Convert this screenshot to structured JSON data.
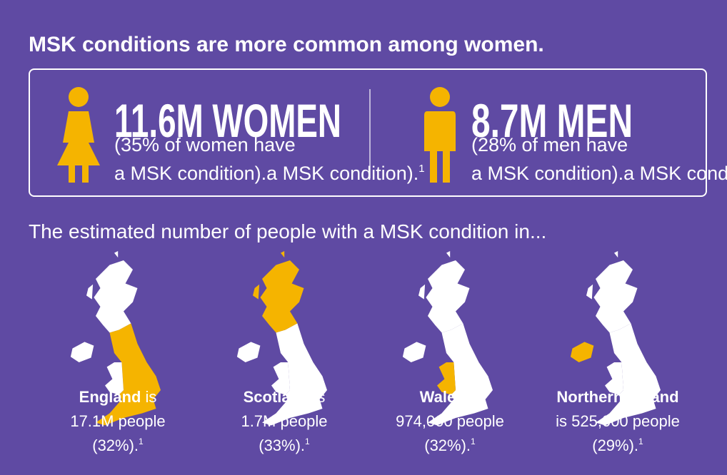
{
  "title": "MSK conditions are more common among women.",
  "stats": [
    {
      "headline": "11.6M WOMEN",
      "lines": [
        "(35% of women have",
        "a MSK condition)."
      ],
      "footnote": "1"
    },
    {
      "headline": "8.7M MEN",
      "lines": [
        "(28% of men have",
        "a MSK condition)."
      ],
      "footnote": "1"
    }
  ],
  "subtitle": "The estimated number of people with a MSK condition in...",
  "regions": [
    {
      "lines": [
        [
          {
            "text": "England",
            "bold": true
          },
          {
            "text": "is"
          }
        ],
        [
          {
            "text": "17.1M people"
          }
        ],
        [
          {
            "text": "(32%)."
          },
          {
            "text": "1",
            "sup": true
          }
        ]
      ]
    },
    {
      "lines": [
        [
          {
            "text": "Scotland",
            "bold": true
          },
          {
            "text": "is"
          }
        ],
        [
          {
            "text": "1.7M people"
          }
        ],
        [
          {
            "text": "(33%)."
          },
          {
            "text": "1",
            "sup": true
          }
        ]
      ]
    },
    {
      "lines": [
        [
          {
            "text": "Wales",
            "bold": true
          },
          {
            "text": "is"
          }
        ],
        [
          {
            "text": "974,000 people"
          }
        ],
        [
          {
            "text": "(32%)."
          },
          {
            "text": "1",
            "sup": true
          }
        ]
      ]
    },
    {
      "lines": [
        [
          {
            "text": "Northern Ireland",
            "bold": true
          }
        ],
        [
          {
            "text": "is 525,000 people"
          }
        ],
        [
          {
            "text": "(29%)."
          },
          {
            "text": "1",
            "sup": true
          }
        ]
      ]
    }
  ]
}
